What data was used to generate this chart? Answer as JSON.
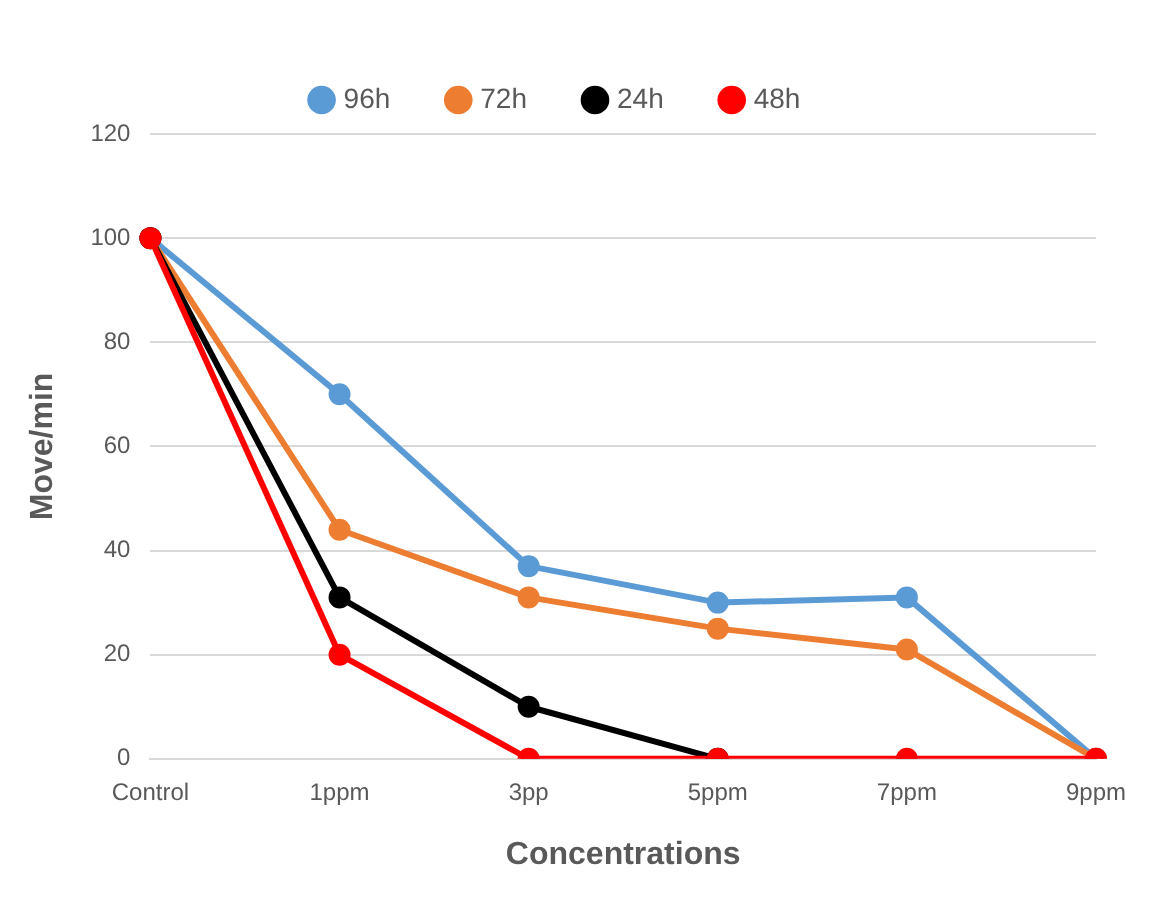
{
  "chart_data": {
    "type": "line",
    "xlabel": "Concentrations",
    "ylabel": "Move/min",
    "categories": [
      "Control",
      "1ppm",
      "3pp",
      "5ppm",
      "7ppm",
      "9ppm"
    ],
    "series": [
      {
        "name": "96h",
        "color": "#5b9bd5",
        "values": [
          100,
          70,
          37,
          30,
          31,
          0
        ]
      },
      {
        "name": "72h",
        "color": "#ed7d31",
        "values": [
          100,
          44,
          31,
          25,
          21,
          0
        ]
      },
      {
        "name": "24h",
        "color": "#000000",
        "values": [
          100,
          31,
          10,
          0,
          null,
          null
        ]
      },
      {
        "name": "48h",
        "color": "#ff0000",
        "values": [
          100,
          20,
          0,
          0,
          0,
          0
        ]
      }
    ],
    "ylim": [
      0,
      120
    ],
    "yticks": [
      0,
      20,
      40,
      60,
      80,
      100,
      120
    ],
    "grid": "y",
    "legend": "top",
    "marker": "circle",
    "line_style": "solid"
  }
}
